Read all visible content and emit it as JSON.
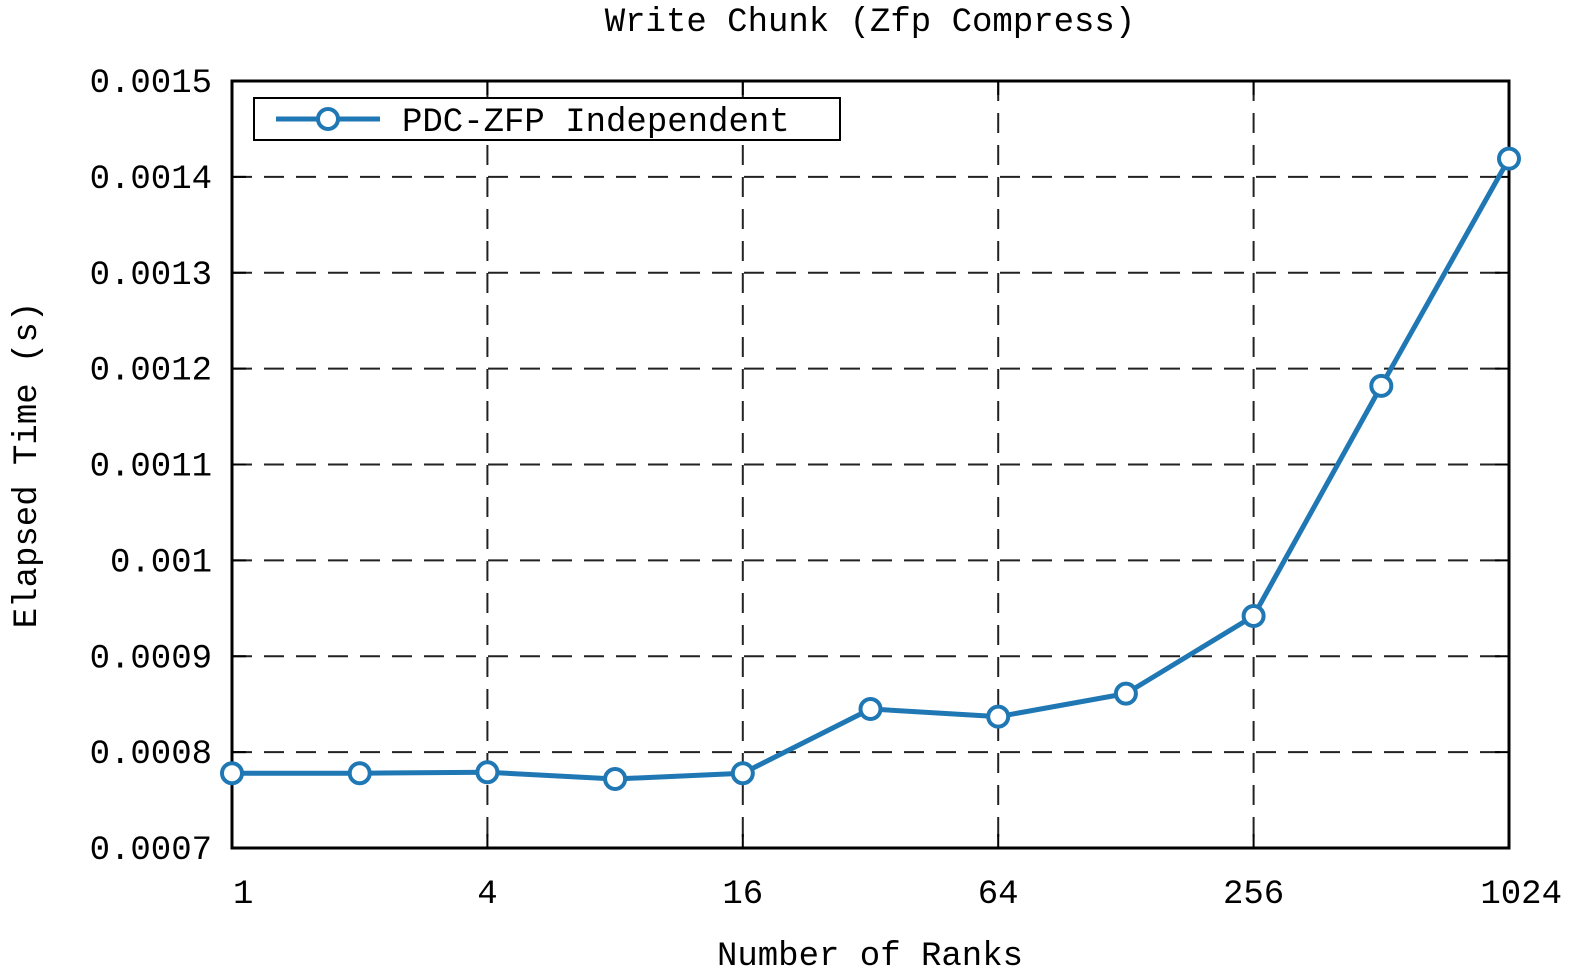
{
  "chart_data": {
    "type": "line",
    "title": "Write Chunk (Zfp Compress)",
    "xlabel": "Number of Ranks",
    "ylabel": "Elapsed Time (s)",
    "x": [
      1,
      2,
      4,
      8,
      16,
      32,
      64,
      128,
      256,
      512,
      1024
    ],
    "x_scale": "log2",
    "x_ticks": [
      1,
      4,
      16,
      64,
      256,
      1024
    ],
    "x_tick_labels": [
      "1",
      "4",
      "16",
      "64",
      "256",
      "1024"
    ],
    "ylim": [
      0.0007,
      0.0015
    ],
    "y_ticks": [
      0.0007,
      0.0008,
      0.0009,
      0.001,
      0.0011,
      0.0012,
      0.0013,
      0.0014,
      0.0015
    ],
    "y_tick_labels": [
      "0.0007",
      "0.0008",
      "0.0009",
      "0.001",
      "0.0011",
      "0.0012",
      "0.0013",
      "0.0014",
      "0.0015"
    ],
    "grid": true,
    "legend_position": "top-left",
    "series": [
      {
        "name": "PDC-ZFP Independent",
        "color": "#1f77b4",
        "marker": "circle-open",
        "values": [
          0.000778,
          0.000778,
          0.000779,
          0.000772,
          0.000778,
          0.000845,
          0.000837,
          0.000861,
          0.000942,
          0.001182,
          0.001419
        ]
      }
    ]
  }
}
